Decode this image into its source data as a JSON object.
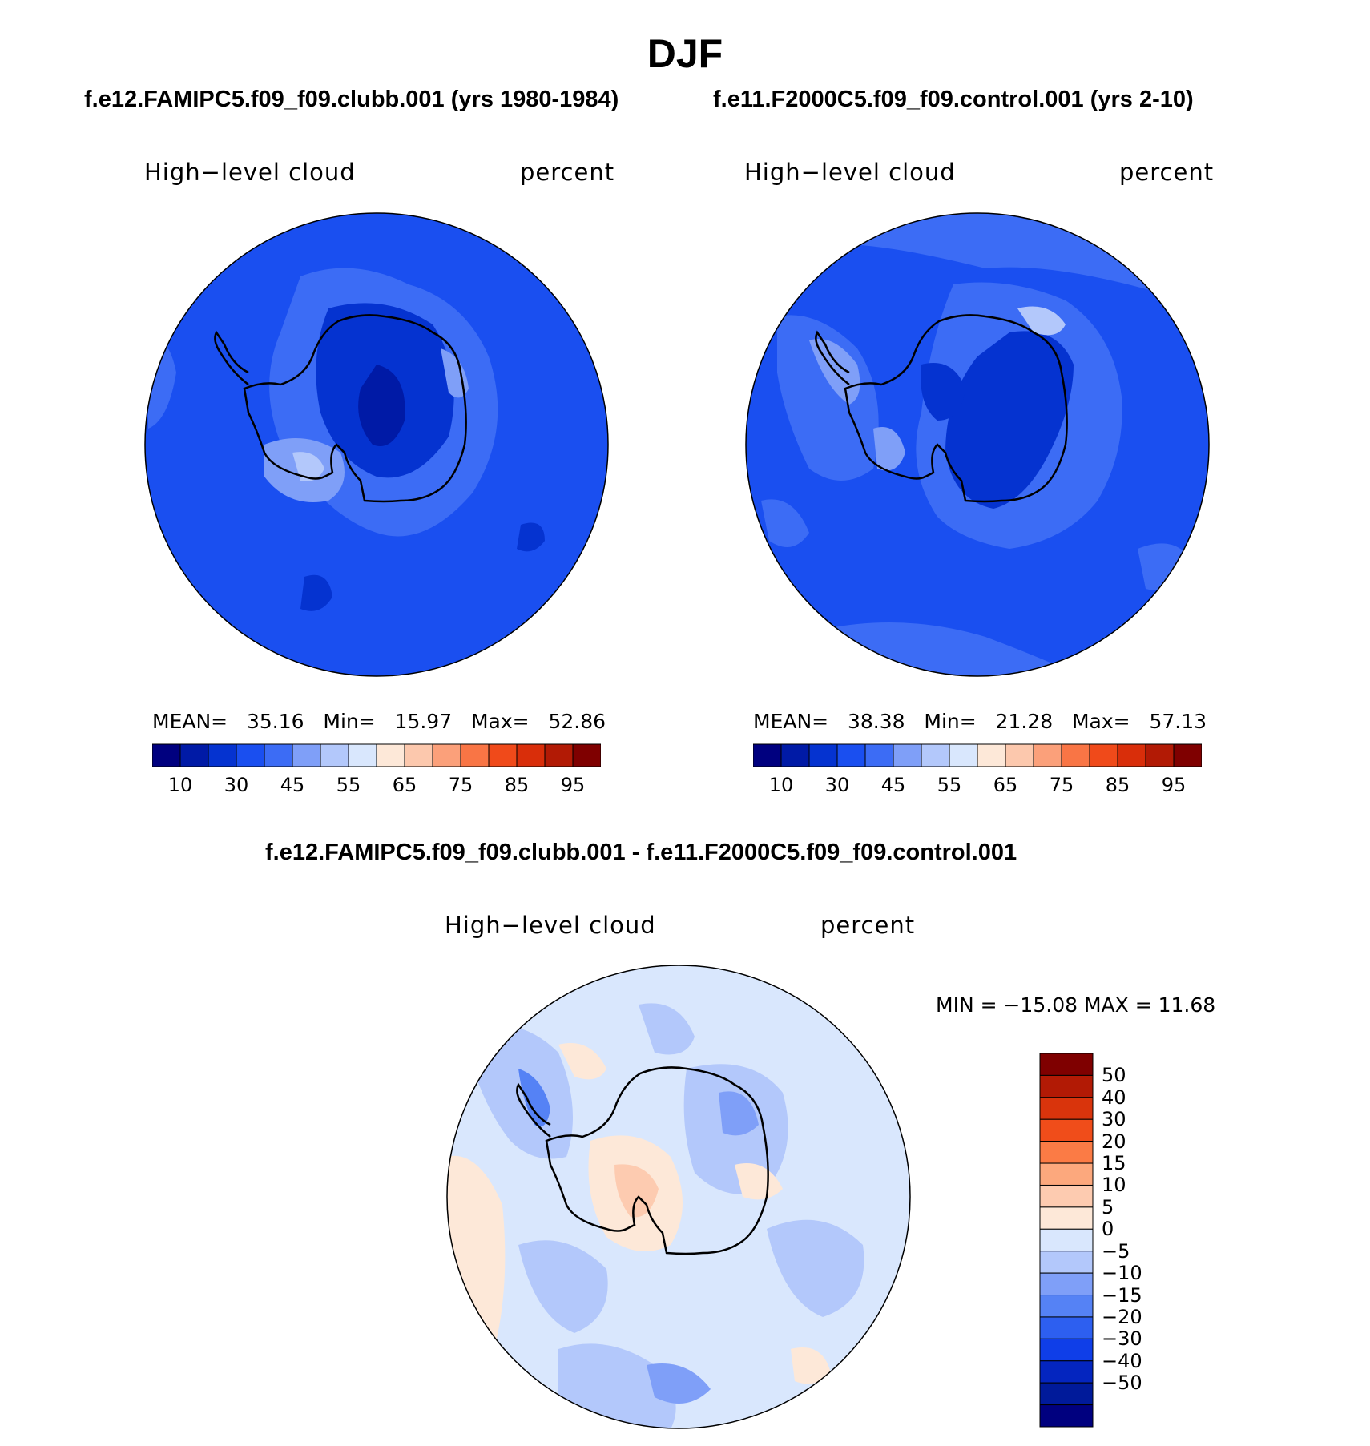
{
  "main_title": "DJF",
  "panels": [
    {
      "case_title": "f.e12.FAMIPC5.f09_f09.clubb.001 (yrs 1980-1984)",
      "variable": "High−level cloud",
      "units": "percent",
      "stats": {
        "mean_label": "MEAN=",
        "mean": "35.16",
        "min_label": "Min=",
        "min": "15.97",
        "max_label": "Max=",
        "max": "52.86"
      }
    },
    {
      "case_title": "f.e11.F2000C5.f09_f09.control.001 (yrs 2-10)",
      "variable": "High−level cloud",
      "units": "percent",
      "stats": {
        "mean_label": "MEAN=",
        "mean": "38.38",
        "min_label": "Min=",
        "min": "21.28",
        "max_label": "Max=",
        "max": "57.13"
      }
    },
    {
      "case_title": "f.e12.FAMIPC5.f09_f09.clubb.001 - f.e11.F2000C5.f09_f09.control.001",
      "variable": "High−level cloud",
      "units": "percent",
      "stats_text": "MIN = −15.08  MAX =   11.68"
    }
  ],
  "abs_colorbar": {
    "colors": [
      "#00007f",
      "#001aa6",
      "#0533d0",
      "#1a4ff0",
      "#3c6cf5",
      "#7f9ff8",
      "#b3c8fb",
      "#d9e7fd",
      "#fde8d8",
      "#fcc8ad",
      "#fba07a",
      "#f97545",
      "#f04a1a",
      "#d92e0a",
      "#b21a05",
      "#7f0000"
    ],
    "tick_labels": [
      "10",
      "30",
      "45",
      "55",
      "65",
      "75",
      "85",
      "95"
    ]
  },
  "diff_colorbar": {
    "colors_top_to_bottom": [
      "#7f0000",
      "#b21a05",
      "#d9340c",
      "#f04d1a",
      "#fb7b45",
      "#fca87d",
      "#fdcbb0",
      "#fde8d8",
      "#d9e7fd",
      "#b3c8fb",
      "#7f9ff8",
      "#5582f5",
      "#2d5ff0",
      "#0f3ee8",
      "#0425bf",
      "#001a9a",
      "#00007f"
    ],
    "tick_labels": [
      "50",
      "40",
      "30",
      "20",
      "15",
      "10",
      "5",
      "0",
      "−5",
      "−10",
      "−15",
      "−20",
      "−30",
      "−40",
      "−50"
    ]
  }
}
